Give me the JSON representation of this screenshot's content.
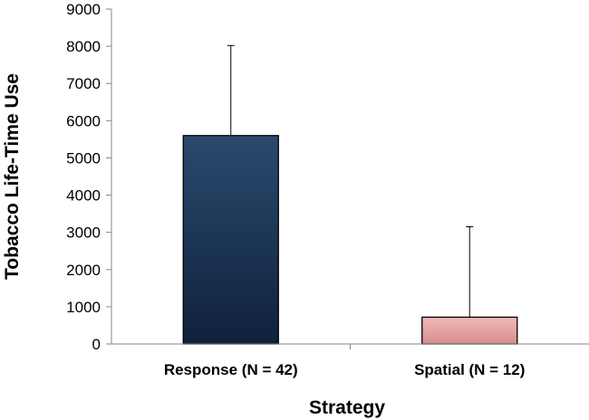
{
  "chart_data": {
    "type": "bar",
    "xlabel": "Strategy",
    "ylabel": "Tobacco Life-Time Use",
    "categories": [
      "Response (N = 42)",
      "Spatial (N = 12)"
    ],
    "values": [
      5600,
      720
    ],
    "error_upper": [
      8020,
      3150
    ],
    "ylim": [
      0,
      9000
    ],
    "yticks": [
      0,
      1000,
      2000,
      3000,
      4000,
      5000,
      6000,
      7000,
      8000,
      9000
    ],
    "grid": false,
    "legend": "none",
    "bar_colors": [
      {
        "top": "#2a4a6e",
        "bottom": "#0f213c"
      },
      {
        "top": "#f0b9b9",
        "bottom": "#d98c8c"
      }
    ],
    "axis_color": "#868686"
  }
}
